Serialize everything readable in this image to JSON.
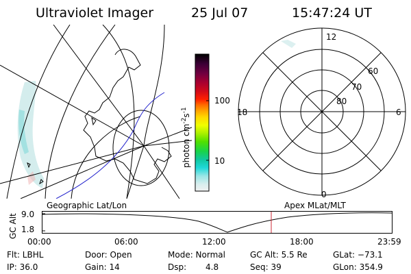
{
  "header": {
    "title": "Ultraviolet Imager",
    "date": "25 Jul 07",
    "time": "15:47:24 UT"
  },
  "colorbar": {
    "label_parts": [
      "photon cm",
      "-2",
      "s",
      "-1"
    ],
    "ticks": [
      "100",
      "10"
    ],
    "colors": [
      "#000000",
      "#3a0035",
      "#700040",
      "#aa0030",
      "#d10a1a",
      "#ff2000",
      "#ff6a00",
      "#ffa000",
      "#ffd800",
      "#f0ff00",
      "#a8f000",
      "#50e000",
      "#18d44a",
      "#10c8a0",
      "#20d8d8",
      "#9ae6e6",
      "#d8eeee",
      "#f0f0f0"
    ]
  },
  "map": {
    "caption": "Geographic Lat/Lon"
  },
  "polar": {
    "caption": "Apex MLat/MLT",
    "mlt_labels": {
      "top": "12",
      "bottom": "0",
      "left": "18",
      "right": "6"
    },
    "lat_labels": [
      "60",
      "70",
      "80"
    ]
  },
  "altitude": {
    "axis_label": "GC Alt",
    "ticks": [
      "9.0",
      "1.8"
    ],
    "time_ticks": [
      "00:00",
      "06:00",
      "12:00",
      "18:00",
      "23:59"
    ],
    "marker_color": "#cc2a36"
  },
  "info": {
    "flt": "Flt: LBHL",
    "door": "Door: Open",
    "mode": "Mode: Normal",
    "gc_alt": "GC Alt: 5.5 Re",
    "glat": "GLat: −73.1",
    "ip": "IP: 36.0",
    "gain": "Gain: 14",
    "dsp_label": "Dsp:",
    "dsp_value": "4.8",
    "seq": "Seq: 39",
    "glon": "GLon: 354.9"
  }
}
